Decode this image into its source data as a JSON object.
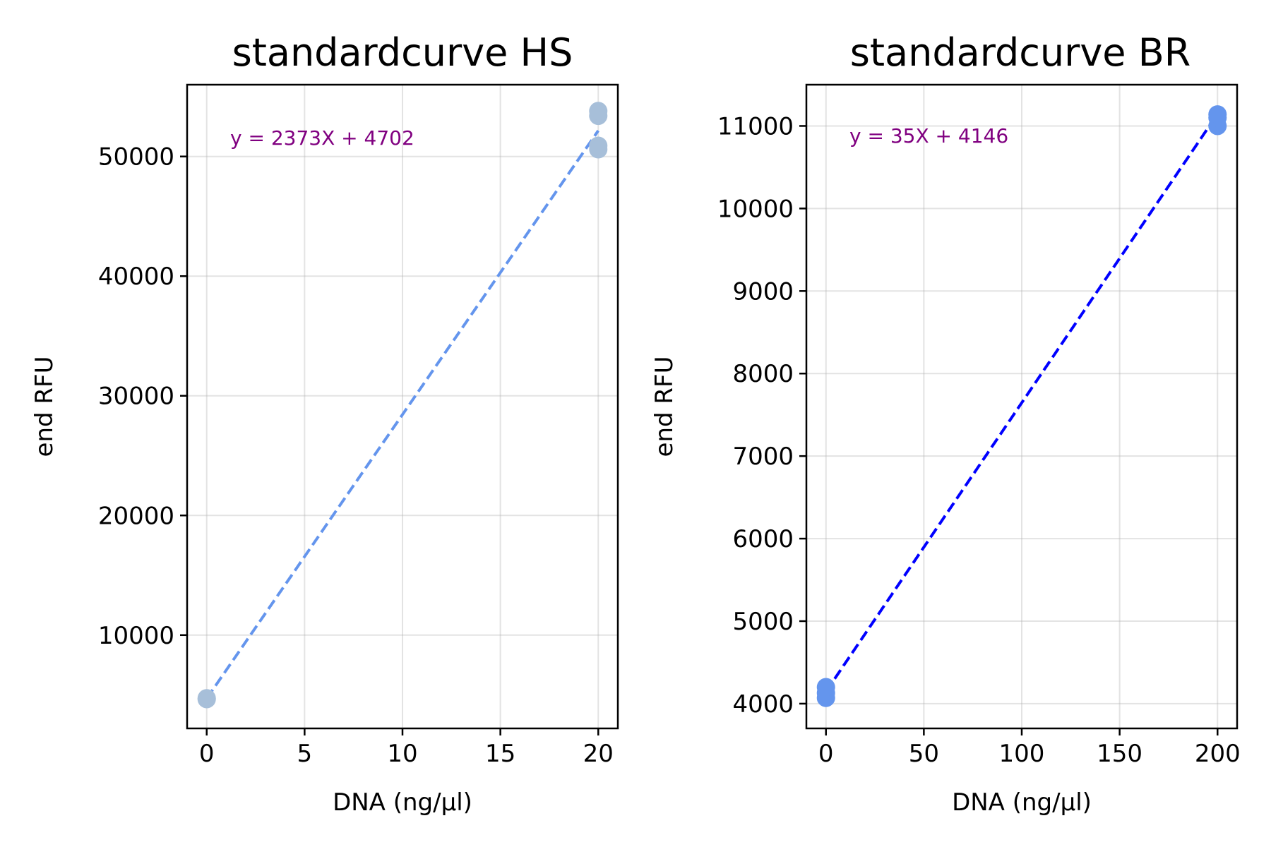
{
  "chart_data": [
    {
      "type": "scatter",
      "title": "standardcurve HS",
      "xlabel": "DNA (ng/µl)",
      "ylabel": "end RFU",
      "xlim": [
        -1,
        21
      ],
      "ylim": [
        2200,
        56000
      ],
      "xticks": [
        0,
        5,
        10,
        15,
        20
      ],
      "xtick_labels": [
        "0",
        "5",
        "10",
        "15",
        "20"
      ],
      "yticks": [
        10000,
        20000,
        30000,
        40000,
        50000
      ],
      "ytick_labels": [
        "10000",
        "20000",
        "30000",
        "40000",
        "50000"
      ],
      "grid": true,
      "marker_color": "#a7bfd9",
      "line_color": "#6495ed",
      "points": [
        {
          "x": 0,
          "y": 4650
        },
        {
          "x": 0,
          "y": 4720
        },
        {
          "x": 20,
          "y": 50600
        },
        {
          "x": 20,
          "y": 50900
        },
        {
          "x": 20,
          "y": 53400
        },
        {
          "x": 20,
          "y": 53800
        }
      ],
      "fit": {
        "slope": 2373,
        "intercept": 4702,
        "x_range": [
          0,
          20
        ],
        "style": "dashed"
      },
      "annotation": {
        "text": "y = 2373X + 4702",
        "color": "#800080",
        "x": 1.2,
        "y": 51000
      }
    },
    {
      "type": "scatter",
      "title": "standardcurve BR",
      "xlabel": "DNA (ng/µl)",
      "ylabel": "end RFU",
      "xlim": [
        -10,
        210
      ],
      "ylim": [
        3700,
        11500
      ],
      "xticks": [
        0,
        50,
        100,
        150,
        200
      ],
      "xtick_labels": [
        "0",
        "50",
        "100",
        "150",
        "200"
      ],
      "yticks": [
        4000,
        5000,
        6000,
        7000,
        8000,
        9000,
        10000,
        11000
      ],
      "ytick_labels": [
        "4000",
        "5000",
        "6000",
        "7000",
        "8000",
        "9000",
        "10000",
        "11000"
      ],
      "grid": true,
      "marker_color": "#6495ed",
      "line_color": "#0000ff",
      "points": [
        {
          "x": 0,
          "y": 4070
        },
        {
          "x": 0,
          "y": 4130
        },
        {
          "x": 0,
          "y": 4200
        },
        {
          "x": 200,
          "y": 11000
        },
        {
          "x": 200,
          "y": 11100
        },
        {
          "x": 200,
          "y": 11140
        }
      ],
      "fit": {
        "slope": 35,
        "intercept": 4146,
        "x_range": [
          0,
          200
        ],
        "style": "dashed"
      },
      "annotation": {
        "text": "y = 35X + 4146",
        "color": "#800080",
        "x": 12,
        "y": 10800
      }
    }
  ]
}
